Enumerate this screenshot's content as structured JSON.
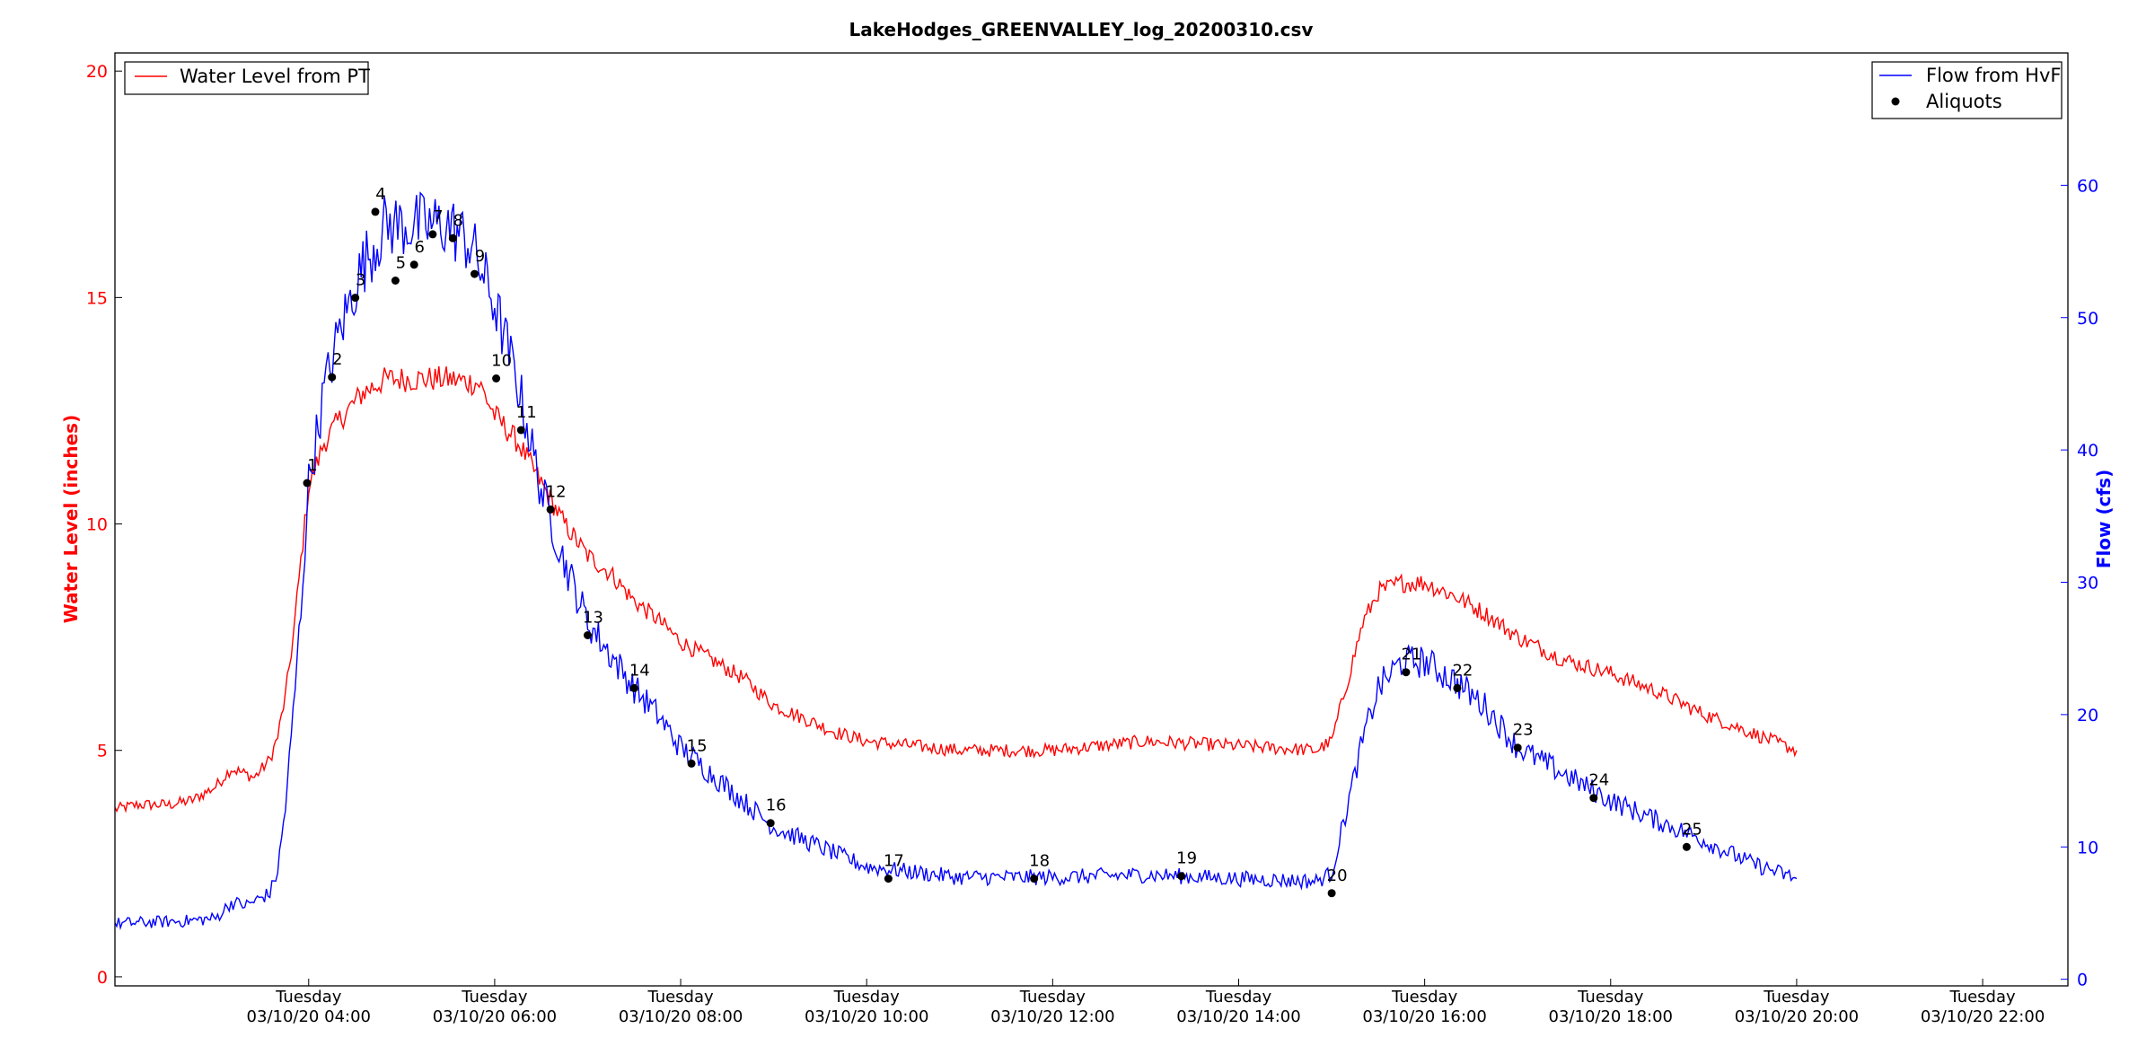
{
  "chart_data": {
    "type": "line",
    "title": "LakeHodges_GREENVALLEY_log_20200310.csv",
    "ylabel_left": "Water Level (inches)",
    "ylabel_right": "Flow (cfs)",
    "xlim": [
      "03/10/20 01:55",
      "03/10/20 22:55"
    ],
    "ylim_left": [
      -0.2,
      20.4
    ],
    "ylim_right": [
      -0.5,
      70.0
    ],
    "yticks_left": [
      0,
      5,
      10,
      15,
      20
    ],
    "yticks_right": [
      0,
      10,
      20,
      30,
      40,
      50,
      60
    ],
    "xticks": [
      {
        "time": "03/10/20 04:00",
        "day": "Tuesday",
        "date": "03/10/20 04:00"
      },
      {
        "time": "03/10/20 06:00",
        "day": "Tuesday",
        "date": "03/10/20 06:00"
      },
      {
        "time": "03/10/20 08:00",
        "day": "Tuesday",
        "date": "03/10/20 08:00"
      },
      {
        "time": "03/10/20 10:00",
        "day": "Tuesday",
        "date": "03/10/20 10:00"
      },
      {
        "time": "03/10/20 12:00",
        "day": "Tuesday",
        "date": "03/10/20 12:00"
      },
      {
        "time": "03/10/20 14:00",
        "day": "Tuesday",
        "date": "03/10/20 14:00"
      },
      {
        "time": "03/10/20 16:00",
        "day": "Tuesday",
        "date": "03/10/20 16:00"
      },
      {
        "time": "03/10/20 18:00",
        "day": "Tuesday",
        "date": "03/10/20 18:00"
      },
      {
        "time": "03/10/20 20:00",
        "day": "Tuesday",
        "date": "03/10/20 20:00"
      },
      {
        "time": "03/10/20 22:00",
        "day": "Tuesday",
        "date": "03/10/20 22:00"
      }
    ],
    "legend_left": {
      "placement": "top-left",
      "entries": [
        {
          "name": "Water Level from PT",
          "color": "#ff0000",
          "marker": "line"
        }
      ]
    },
    "legend_right": {
      "placement": "top-right",
      "entries": [
        {
          "name": "Flow from HvF",
          "color": "#0000ff",
          "marker": "line"
        },
        {
          "name": "Aliquots",
          "color": "#000000",
          "marker": "dot"
        }
      ]
    },
    "series": [
      {
        "name": "Water Level from PT",
        "axis": "left",
        "color": "#ff0000",
        "points": [
          [
            "03/10/20 01:55",
            3.7
          ],
          [
            "03/10/20 02:10",
            3.8
          ],
          [
            "03/10/20 02:30",
            3.8
          ],
          [
            "03/10/20 02:45",
            3.9
          ],
          [
            "03/10/20 03:00",
            4.2
          ],
          [
            "03/10/20 03:10",
            4.6
          ],
          [
            "03/10/20 03:25",
            4.4
          ],
          [
            "03/10/20 03:35",
            4.8
          ],
          [
            "03/10/20 03:40",
            5.3
          ],
          [
            "03/10/20 03:45",
            6.2
          ],
          [
            "03/10/20 03:50",
            7.5
          ],
          [
            "03/10/20 03:55",
            9.2
          ],
          [
            "03/10/20 04:00",
            10.8
          ],
          [
            "03/10/20 04:10",
            11.8
          ],
          [
            "03/10/20 04:20",
            12.3
          ],
          [
            "03/10/20 04:35",
            12.9
          ],
          [
            "03/10/20 04:50",
            13.2
          ],
          [
            "03/10/20 05:00",
            13.2
          ],
          [
            "03/10/20 05:30",
            13.2
          ],
          [
            "03/10/20 05:50",
            13.1
          ],
          [
            "03/10/20 06:00",
            12.4
          ],
          [
            "03/10/20 06:15",
            11.8
          ],
          [
            "03/10/20 06:30",
            10.9
          ],
          [
            "03/10/20 06:45",
            10.0
          ],
          [
            "03/10/20 07:00",
            9.3
          ],
          [
            "03/10/20 07:15",
            8.9
          ],
          [
            "03/10/20 07:30",
            8.3
          ],
          [
            "03/10/20 07:45",
            7.9
          ],
          [
            "03/10/20 08:00",
            7.4
          ],
          [
            "03/10/20 08:20",
            7.0
          ],
          [
            "03/10/20 08:40",
            6.6
          ],
          [
            "03/10/20 09:00",
            6.0
          ],
          [
            "03/10/20 09:20",
            5.7
          ],
          [
            "03/10/20 09:40",
            5.4
          ],
          [
            "03/10/20 10:00",
            5.2
          ],
          [
            "03/10/20 10:30",
            5.1
          ],
          [
            "03/10/20 11:00",
            5.0
          ],
          [
            "03/10/20 12:00",
            5.0
          ],
          [
            "03/10/20 13:00",
            5.2
          ],
          [
            "03/10/20 14:00",
            5.1
          ],
          [
            "03/10/20 14:50",
            5.0
          ],
          [
            "03/10/20 15:00",
            5.2
          ],
          [
            "03/10/20 15:10",
            6.5
          ],
          [
            "03/10/20 15:20",
            7.8
          ],
          [
            "03/10/20 15:30",
            8.5
          ],
          [
            "03/10/20 15:45",
            8.7
          ],
          [
            "03/10/20 16:00",
            8.7
          ],
          [
            "03/10/20 16:20",
            8.4
          ],
          [
            "03/10/20 16:40",
            8.0
          ],
          [
            "03/10/20 17:00",
            7.5
          ],
          [
            "03/10/20 17:30",
            7.0
          ],
          [
            "03/10/20 18:00",
            6.7
          ],
          [
            "03/10/20 18:30",
            6.3
          ],
          [
            "03/10/20 19:00",
            5.8
          ],
          [
            "03/10/20 19:30",
            5.4
          ],
          [
            "03/10/20 20:00",
            5.0
          ]
        ]
      },
      {
        "name": "Flow from HvF",
        "axis": "right",
        "color": "#0000ff",
        "points": [
          [
            "03/10/20 01:55",
            4.2
          ],
          [
            "03/10/20 02:15",
            4.3
          ],
          [
            "03/10/20 02:40",
            4.4
          ],
          [
            "03/10/20 03:00",
            4.6
          ],
          [
            "03/10/20 03:10",
            5.8
          ],
          [
            "03/10/20 03:20",
            5.6
          ],
          [
            "03/10/20 03:35",
            6.5
          ],
          [
            "03/10/20 03:40",
            8.2
          ],
          [
            "03/10/20 03:45",
            13.0
          ],
          [
            "03/10/20 03:50",
            20.0
          ],
          [
            "03/10/20 03:55",
            28.0
          ],
          [
            "03/10/20 04:00",
            37.5
          ],
          [
            "03/10/20 04:10",
            44.5
          ],
          [
            "03/10/20 04:20",
            49.0
          ],
          [
            "03/10/20 04:35",
            54.0
          ],
          [
            "03/10/20 04:50",
            57.0
          ],
          [
            "03/10/20 05:00",
            57.0
          ],
          [
            "03/10/20 05:30",
            57.0
          ],
          [
            "03/10/20 05:45",
            55.5
          ],
          [
            "03/10/20 06:00",
            51.0
          ],
          [
            "03/10/20 06:15",
            45.0
          ],
          [
            "03/10/20 06:30",
            37.0
          ],
          [
            "03/10/20 06:45",
            31.5
          ],
          [
            "03/10/20 07:00",
            27.0
          ],
          [
            "03/10/20 07:15",
            24.5
          ],
          [
            "03/10/20 07:30",
            22.0
          ],
          [
            "03/10/20 07:45",
            20.0
          ],
          [
            "03/10/20 08:00",
            17.5
          ],
          [
            "03/10/20 08:20",
            15.5
          ],
          [
            "03/10/20 08:40",
            13.5
          ],
          [
            "03/10/20 09:00",
            11.5
          ],
          [
            "03/10/20 09:30",
            10.0
          ],
          [
            "03/10/20 10:00",
            8.5
          ],
          [
            "03/10/20 11:00",
            7.7
          ],
          [
            "03/10/20 12:00",
            7.7
          ],
          [
            "03/10/20 13:00",
            7.9
          ],
          [
            "03/10/20 14:00",
            7.6
          ],
          [
            "03/10/20 14:50",
            7.4
          ],
          [
            "03/10/20 15:00",
            8.0
          ],
          [
            "03/10/20 15:10",
            13.0
          ],
          [
            "03/10/20 15:20",
            18.0
          ],
          [
            "03/10/20 15:30",
            22.0
          ],
          [
            "03/10/20 15:45",
            24.0
          ],
          [
            "03/10/20 16:00",
            24.0
          ],
          [
            "03/10/20 16:20",
            22.5
          ],
          [
            "03/10/20 16:40",
            20.5
          ],
          [
            "03/10/20 17:00",
            17.5
          ],
          [
            "03/10/20 17:30",
            15.5
          ],
          [
            "03/10/20 18:00",
            13.5
          ],
          [
            "03/10/20 18:30",
            12.0
          ],
          [
            "03/10/20 19:00",
            10.5
          ],
          [
            "03/10/20 19:30",
            8.8
          ],
          [
            "03/10/20 20:00",
            7.6
          ]
        ]
      }
    ],
    "aliquots": [
      {
        "label": "1",
        "time": "03/10/20 03:59",
        "flow": 37.5
      },
      {
        "label": "2",
        "time": "03/10/20 04:15",
        "flow": 45.5
      },
      {
        "label": "3",
        "time": "03/10/20 04:30",
        "flow": 51.5
      },
      {
        "label": "4",
        "time": "03/10/20 04:43",
        "flow": 58.0
      },
      {
        "label": "5",
        "time": "03/10/20 04:56",
        "flow": 52.8
      },
      {
        "label": "6",
        "time": "03/10/20 05:08",
        "flow": 54.0
      },
      {
        "label": "7",
        "time": "03/10/20 05:20",
        "flow": 56.3
      },
      {
        "label": "8",
        "time": "03/10/20 05:33",
        "flow": 56.0
      },
      {
        "label": "9",
        "time": "03/10/20 05:47",
        "flow": 53.3
      },
      {
        "label": "10",
        "time": "03/10/20 06:01",
        "flow": 45.4
      },
      {
        "label": "11",
        "time": "03/10/20 06:17",
        "flow": 41.5
      },
      {
        "label": "12",
        "time": "03/10/20 06:36",
        "flow": 35.5
      },
      {
        "label": "13",
        "time": "03/10/20 07:00",
        "flow": 26.0
      },
      {
        "label": "14",
        "time": "03/10/20 07:30",
        "flow": 22.0
      },
      {
        "label": "15",
        "time": "03/10/20 08:07",
        "flow": 16.3
      },
      {
        "label": "16",
        "time": "03/10/20 08:58",
        "flow": 11.8
      },
      {
        "label": "17",
        "time": "03/10/20 10:14",
        "flow": 7.6
      },
      {
        "label": "18",
        "time": "03/10/20 11:48",
        "flow": 7.6
      },
      {
        "label": "19",
        "time": "03/10/20 13:23",
        "flow": 7.8
      },
      {
        "label": "20",
        "time": "03/10/20 15:00",
        "flow": 6.5
      },
      {
        "label": "21",
        "time": "03/10/20 15:48",
        "flow": 23.2
      },
      {
        "label": "22",
        "time": "03/10/20 16:21",
        "flow": 22.0
      },
      {
        "label": "23",
        "time": "03/10/20 17:00",
        "flow": 17.5
      },
      {
        "label": "24",
        "time": "03/10/20 17:49",
        "flow": 13.7
      },
      {
        "label": "25",
        "time": "03/10/20 18:49",
        "flow": 10.0
      }
    ]
  }
}
